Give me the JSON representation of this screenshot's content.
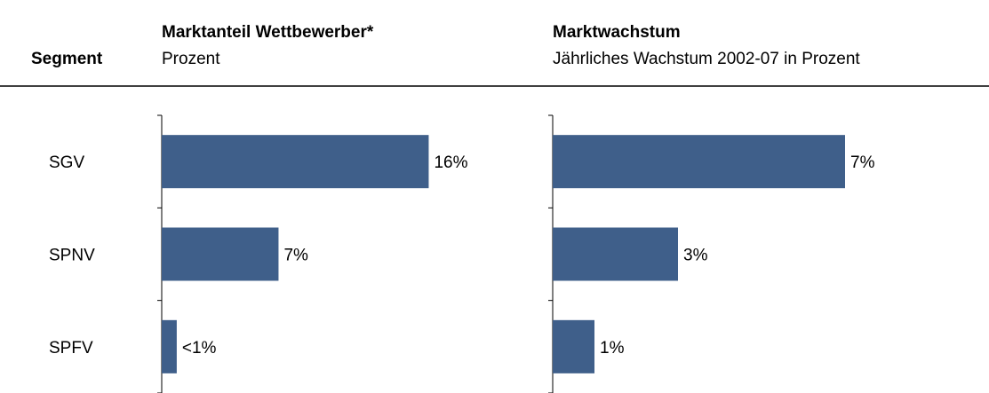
{
  "header": {
    "segment": "Segment"
  },
  "chart_data": [
    {
      "type": "bar",
      "orientation": "horizontal",
      "title": "Marktanteil Wettbewerber*",
      "subtitle": "Prozent",
      "categories": [
        "SGV",
        "SPNV",
        "SPFV"
      ],
      "values": [
        16,
        7,
        0.9
      ],
      "value_labels": [
        "16%",
        "7%",
        "<1%"
      ],
      "color": "#3f5f8a",
      "xlim": [
        0,
        18
      ]
    },
    {
      "type": "bar",
      "orientation": "horizontal",
      "title": "Marktwachstum",
      "subtitle": "Jährliches Wachstum 2002-07 in Prozent",
      "values": [
        7,
        3,
        1
      ],
      "value_labels": [
        "7%",
        "3%",
        "1%"
      ],
      "color": "#3f5f8a",
      "xlim": [
        0,
        8
      ]
    }
  ]
}
